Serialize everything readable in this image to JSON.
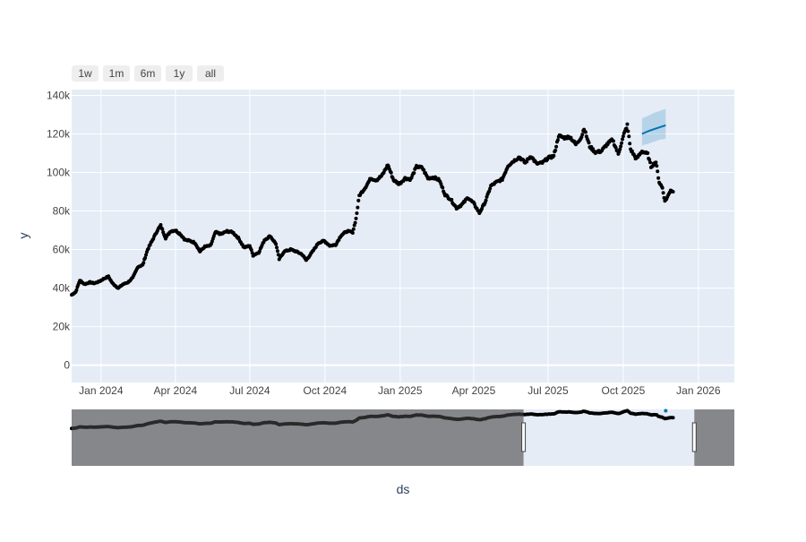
{
  "range_selector": {
    "buttons": [
      "1w",
      "1m",
      "6m",
      "1y",
      "all"
    ]
  },
  "chart_data": {
    "type": "scatter",
    "xlabel": "ds",
    "ylabel": "y",
    "x_tick_labels": [
      "Jan 2024",
      "Apr 2024",
      "Jul 2024",
      "Oct 2024",
      "Jan 2025",
      "Apr 2025",
      "Jul 2025",
      "Oct 2025",
      "Jan 2026"
    ],
    "x_tick_dates": [
      "2024-01-01",
      "2024-04-01",
      "2024-07-01",
      "2024-10-01",
      "2025-01-01",
      "2025-04-01",
      "2025-07-01",
      "2025-10-01",
      "2026-01-01"
    ],
    "y_ticks": [
      0,
      20000,
      40000,
      60000,
      80000,
      100000,
      120000,
      140000
    ],
    "y_tick_labels": [
      "0",
      "20k",
      "40k",
      "60k",
      "80k",
      "100k",
      "120k",
      "140k"
    ],
    "xlim": [
      "2023-11-26",
      "2026-02-14"
    ],
    "ylim": [
      -9000,
      143000
    ],
    "grid": true,
    "observed_series": {
      "name": "y",
      "color": "#000000",
      "points": [
        [
          "2023-11-26",
          36500
        ],
        [
          "2023-12-01",
          38000
        ],
        [
          "2023-12-06",
          44000
        ],
        [
          "2023-12-12",
          42000
        ],
        [
          "2023-12-18",
          43000
        ],
        [
          "2023-12-24",
          42500
        ],
        [
          "2023-12-30",
          43500
        ],
        [
          "2024-01-05",
          45000
        ],
        [
          "2024-01-10",
          46000
        ],
        [
          "2024-01-15",
          42500
        ],
        [
          "2024-01-22",
          40000
        ],
        [
          "2024-01-28",
          42000
        ],
        [
          "2024-02-03",
          43000
        ],
        [
          "2024-02-09",
          45500
        ],
        [
          "2024-02-15",
          51000
        ],
        [
          "2024-02-21",
          52000
        ],
        [
          "2024-02-27",
          60000
        ],
        [
          "2024-03-04",
          65000
        ],
        [
          "2024-03-10",
          70000
        ],
        [
          "2024-03-14",
          72500
        ],
        [
          "2024-03-20",
          66000
        ],
        [
          "2024-03-26",
          69500
        ],
        [
          "2024-04-01",
          70000
        ],
        [
          "2024-04-07",
          68000
        ],
        [
          "2024-04-13",
          65000
        ],
        [
          "2024-04-19",
          64500
        ],
        [
          "2024-04-25",
          63500
        ],
        [
          "2024-05-01",
          59000
        ],
        [
          "2024-05-07",
          61500
        ],
        [
          "2024-05-14",
          62000
        ],
        [
          "2024-05-20",
          69000
        ],
        [
          "2024-05-27",
          68000
        ],
        [
          "2024-06-03",
          69500
        ],
        [
          "2024-06-10",
          69000
        ],
        [
          "2024-06-17",
          66000
        ],
        [
          "2024-06-24",
          61000
        ],
        [
          "2024-07-01",
          62000
        ],
        [
          "2024-07-05",
          57000
        ],
        [
          "2024-07-12",
          58500
        ],
        [
          "2024-07-19",
          65000
        ],
        [
          "2024-07-26",
          67000
        ],
        [
          "2024-08-02",
          63000
        ],
        [
          "2024-08-06",
          55000
        ],
        [
          "2024-08-12",
          59000
        ],
        [
          "2024-08-20",
          60000
        ],
        [
          "2024-08-27",
          59000
        ],
        [
          "2024-09-03",
          57500
        ],
        [
          "2024-09-08",
          54500
        ],
        [
          "2024-09-16",
          59000
        ],
        [
          "2024-09-23",
          63500
        ],
        [
          "2024-09-30",
          64500
        ],
        [
          "2024-10-07",
          62000
        ],
        [
          "2024-10-14",
          62500
        ],
        [
          "2024-10-21",
          67500
        ],
        [
          "2024-10-28",
          69500
        ],
        [
          "2024-11-04",
          69000
        ],
        [
          "2024-11-08",
          76000
        ],
        [
          "2024-11-12",
          88000
        ],
        [
          "2024-11-19",
          92000
        ],
        [
          "2024-11-26",
          97000
        ],
        [
          "2024-12-03",
          96000
        ],
        [
          "2024-12-10",
          98500
        ],
        [
          "2024-12-17",
          104000
        ],
        [
          "2024-12-24",
          96000
        ],
        [
          "2024-12-31",
          94000
        ],
        [
          "2025-01-07",
          97000
        ],
        [
          "2025-01-14",
          96500
        ],
        [
          "2025-01-21",
          103000
        ],
        [
          "2025-01-28",
          102500
        ],
        [
          "2025-02-04",
          97000
        ],
        [
          "2025-02-11",
          97500
        ],
        [
          "2025-02-18",
          96000
        ],
        [
          "2025-02-25",
          88500
        ],
        [
          "2025-03-04",
          86000
        ],
        [
          "2025-03-11",
          81500
        ],
        [
          "2025-03-18",
          83500
        ],
        [
          "2025-03-25",
          87000
        ],
        [
          "2025-04-01",
          84000
        ],
        [
          "2025-04-08",
          79000
        ],
        [
          "2025-04-15",
          84500
        ],
        [
          "2025-04-22",
          93000
        ],
        [
          "2025-04-29",
          95000
        ],
        [
          "2025-05-06",
          96500
        ],
        [
          "2025-05-13",
          103500
        ],
        [
          "2025-05-20",
          106000
        ],
        [
          "2025-05-27",
          108000
        ],
        [
          "2025-06-03",
          105000
        ],
        [
          "2025-06-10",
          108500
        ],
        [
          "2025-06-17",
          104500
        ],
        [
          "2025-06-24",
          105000
        ],
        [
          "2025-07-01",
          107500
        ],
        [
          "2025-07-08",
          108500
        ],
        [
          "2025-07-14",
          119000
        ],
        [
          "2025-07-21",
          118000
        ],
        [
          "2025-07-28",
          118500
        ],
        [
          "2025-08-04",
          114500
        ],
        [
          "2025-08-11",
          118500
        ],
        [
          "2025-08-14",
          123000
        ],
        [
          "2025-08-21",
          113500
        ],
        [
          "2025-08-28",
          110500
        ],
        [
          "2025-09-04",
          111000
        ],
        [
          "2025-09-11",
          114500
        ],
        [
          "2025-09-18",
          117000
        ],
        [
          "2025-09-25",
          109500
        ],
        [
          "2025-10-02",
          120000
        ],
        [
          "2025-10-06",
          124500
        ],
        [
          "2025-10-10",
          112000
        ],
        [
          "2025-10-17",
          107000
        ],
        [
          "2025-10-24",
          111000
        ],
        [
          "2025-10-31",
          109500
        ],
        [
          "2025-11-04",
          103000
        ],
        [
          "2025-11-10",
          105500
        ],
        [
          "2025-11-14",
          95000
        ],
        [
          "2025-11-18",
          92000
        ],
        [
          "2025-11-21",
          85000
        ],
        [
          "2025-11-25",
          88000
        ],
        [
          "2025-11-28",
          91000
        ],
        [
          "2025-12-01",
          90000
        ]
      ]
    },
    "forecast_series": {
      "name": "yhat",
      "color": "#0072B2",
      "band_color": "#0072B2",
      "points": [
        [
          "2025-10-24",
          120000,
          114000,
          128000
        ],
        [
          "2025-11-01",
          121500,
          115000,
          129500
        ],
        [
          "2025-11-08",
          122500,
          116000,
          131000
        ],
        [
          "2025-11-15",
          123500,
          117000,
          132000
        ],
        [
          "2025-11-22",
          124500,
          117500,
          133000
        ]
      ]
    },
    "rangeslider": {
      "selected_range": [
        "2025-06-01",
        "2025-12-27"
      ]
    }
  }
}
